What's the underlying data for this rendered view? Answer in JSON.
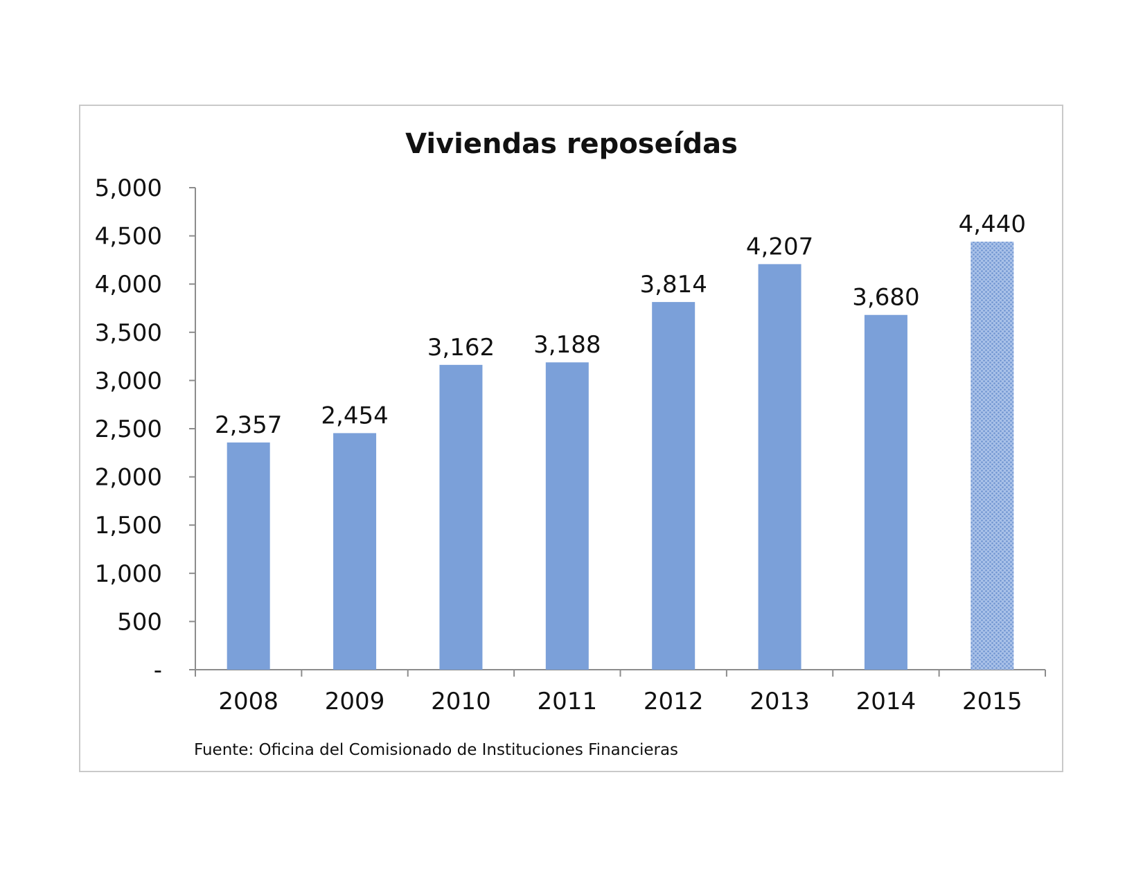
{
  "chart_data": {
    "type": "bar",
    "title": "Viviendas reposeídas",
    "categories": [
      "2008",
      "2009",
      "2010",
      "2011",
      "2012",
      "2013",
      "2014",
      "2015"
    ],
    "values": [
      2357,
      2454,
      3162,
      3188,
      3814,
      4207,
      3680,
      4440
    ],
    "data_labels": [
      "2,357",
      "2,454",
      "3,162",
      "3,188",
      "3,814",
      "4,207",
      "3,680",
      "4,440"
    ],
    "y_ticks": [
      0,
      500,
      1000,
      1500,
      2000,
      2500,
      3000,
      3500,
      4000,
      4500,
      5000
    ],
    "y_tick_labels": [
      "-",
      "500",
      "1,000",
      "1,500",
      "2,000",
      "2,500",
      "3,000",
      "3,500",
      "4,000",
      "4,500",
      "5,000"
    ],
    "ylim": [
      0,
      5000
    ],
    "xlabel": "",
    "ylabel": "",
    "grid": false,
    "legend": "none",
    "bar_color": "#7ba0d9",
    "highlight_bar": {
      "category": "2015",
      "pattern": "dotted-hatch",
      "color": "#7ba0d9"
    }
  },
  "source_note": "Fuente: Oficina del Comisionado de Instituciones Financieras"
}
